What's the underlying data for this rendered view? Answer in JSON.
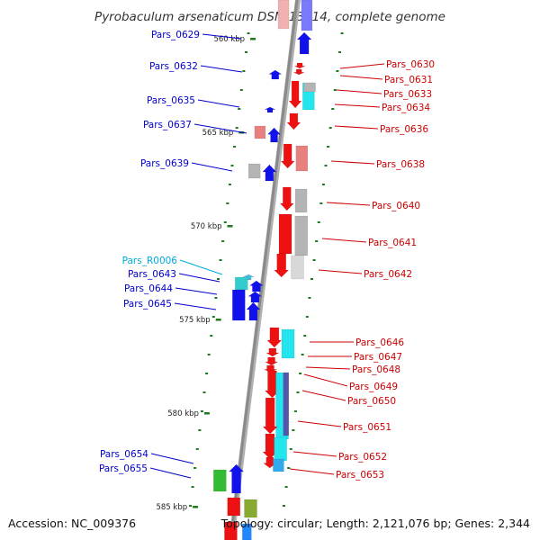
{
  "title": "Pyrobaculum arsenaticum DSM 13514, complete genome",
  "accession": "Accession: NC_009376",
  "summary": "Topology: circular; Length: 2,121,076 bp; Genes: 2,344",
  "colors": {
    "left_label": "#0000cc",
    "right_label": "#cc0000",
    "rna_label": "#00aadd",
    "backbone": "#8a8a8a",
    "tick": "#1f7a1f"
  },
  "kbp_markers": [
    {
      "kbp": 560,
      "label": "560 kbp"
    },
    {
      "kbp": 565,
      "label": "565 kbp"
    },
    {
      "kbp": 570,
      "label": "570 kbp"
    },
    {
      "kbp": 575,
      "label": "575 kbp"
    },
    {
      "kbp": 580,
      "label": "580 kbp"
    },
    {
      "kbp": 585,
      "label": "585 kbp"
    }
  ],
  "left_labels": [
    {
      "id": "Pars_0629",
      "type": "cds"
    },
    {
      "id": "Pars_0632",
      "type": "cds"
    },
    {
      "id": "Pars_0635",
      "type": "cds"
    },
    {
      "id": "Pars_0637",
      "type": "cds"
    },
    {
      "id": "Pars_0639",
      "type": "cds"
    },
    {
      "id": "Pars_R0006",
      "type": "rna"
    },
    {
      "id": "Pars_0643",
      "type": "cds"
    },
    {
      "id": "Pars_0644",
      "type": "cds"
    },
    {
      "id": "Pars_0645",
      "type": "cds"
    },
    {
      "id": "Pars_0654",
      "type": "cds"
    },
    {
      "id": "Pars_0655",
      "type": "cds"
    }
  ],
  "right_labels": [
    {
      "id": "Pars_0630"
    },
    {
      "id": "Pars_0631"
    },
    {
      "id": "Pars_0633"
    },
    {
      "id": "Pars_0634"
    },
    {
      "id": "Pars_0636"
    },
    {
      "id": "Pars_0638"
    },
    {
      "id": "Pars_0640"
    },
    {
      "id": "Pars_0641"
    },
    {
      "id": "Pars_0642"
    },
    {
      "id": "Pars_0646"
    },
    {
      "id": "Pars_0647"
    },
    {
      "id": "Pars_0648"
    },
    {
      "id": "Pars_0649"
    },
    {
      "id": "Pars_0650"
    },
    {
      "id": "Pars_0651"
    },
    {
      "id": "Pars_0652"
    },
    {
      "id": "Pars_0653"
    }
  ]
}
